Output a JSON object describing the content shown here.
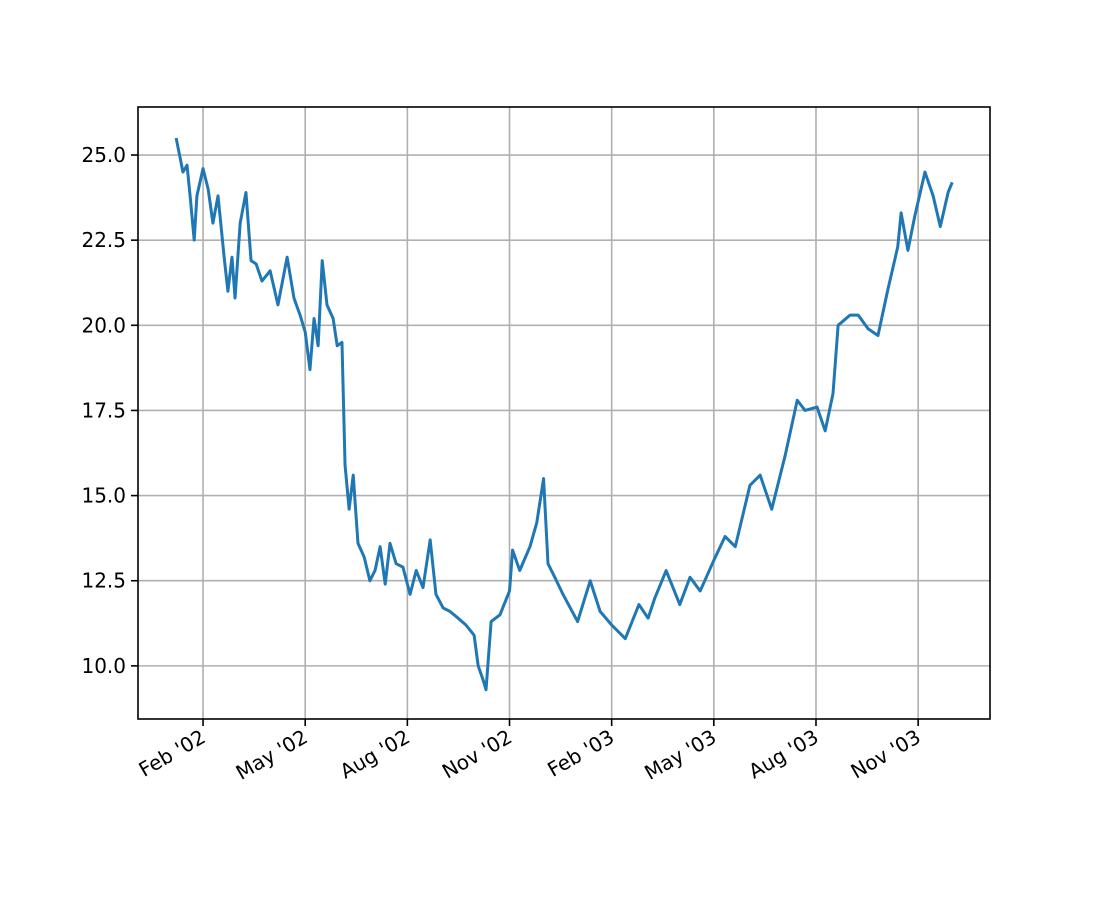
{
  "chart_data": {
    "type": "line",
    "x": [
      0.21,
      0.41,
      0.53,
      0.62,
      0.74,
      0.82,
      1.0,
      1.15,
      1.29,
      1.44,
      1.62,
      1.73,
      1.85,
      1.94,
      2.09,
      2.26,
      2.41,
      2.56,
      2.73,
      2.97,
      3.2,
      3.47,
      3.67,
      3.85,
      4.0,
      4.14,
      4.26,
      4.38,
      4.5,
      4.64,
      4.82,
      4.94,
      5.08,
      5.17,
      5.29,
      5.41,
      5.55,
      5.73,
      5.9,
      6.05,
      6.2,
      6.35,
      6.49,
      6.67,
      6.87,
      7.08,
      7.26,
      7.46,
      7.67,
      7.84,
      8.05,
      8.25,
      8.49,
      8.72,
      8.96,
      9.08,
      9.22,
      9.31,
      9.46,
      9.72,
      10.0,
      10.09,
      10.3,
      10.6,
      10.8,
      11.0,
      11.13,
      11.33,
      11.57,
      12.0,
      12.37,
      12.66,
      13.0,
      13.4,
      13.8,
      14.07,
      14.27,
      14.6,
      15.0,
      15.3,
      15.6,
      16.0,
      16.33,
      16.63,
      17.06,
      17.36,
      17.7,
      18.1,
      18.45,
      18.68,
      19.03,
      19.27,
      19.5,
      19.65,
      20.0,
      20.24,
      20.53,
      20.82,
      21.1,
      21.4,
      21.5,
      21.7,
      21.9,
      22.2,
      22.44,
      22.65,
      22.88,
      23.0
    ],
    "series": [
      {
        "color": "#1f77b4",
        "values": [
          25.5,
          24.5,
          24.7,
          23.8,
          22.5,
          23.8,
          24.6,
          24.0,
          23.0,
          23.8,
          22.0,
          21.0,
          22.0,
          20.8,
          23.0,
          23.9,
          21.9,
          21.8,
          21.3,
          21.6,
          20.6,
          22.0,
          20.8,
          20.3,
          19.8,
          18.7,
          20.2,
          19.4,
          21.9,
          20.6,
          20.2,
          19.4,
          19.5,
          15.9,
          14.6,
          15.6,
          13.6,
          13.2,
          12.5,
          12.8,
          13.5,
          12.4,
          13.6,
          13.0,
          12.9,
          12.1,
          12.8,
          12.3,
          13.7,
          12.1,
          11.7,
          11.6,
          11.4,
          11.2,
          10.9,
          10.0,
          9.6,
          9.3,
          11.3,
          11.5,
          12.2,
          13.4,
          12.8,
          13.5,
          14.2,
          15.5,
          13.0,
          12.6,
          12.1,
          11.3,
          12.5,
          11.6,
          11.2,
          10.8,
          11.8,
          11.4,
          12.0,
          12.8,
          11.8,
          12.6,
          12.2,
          13.1,
          13.8,
          13.5,
          15.3,
          15.6,
          14.6,
          16.2,
          17.8,
          17.5,
          17.6,
          16.9,
          18.0,
          20.0,
          20.3,
          20.3,
          19.9,
          19.7,
          21.0,
          22.3,
          23.3,
          22.2,
          23.2,
          24.5,
          23.8,
          22.9,
          23.9,
          24.2
        ]
      }
    ],
    "xlim": [
      -0.91,
      24.11
    ],
    "xticks": [
      {
        "value": 1,
        "label": "Feb '02"
      },
      {
        "value": 4,
        "label": "May '02"
      },
      {
        "value": 7,
        "label": "Aug '02"
      },
      {
        "value": 10,
        "label": "Nov '02"
      },
      {
        "value": 13,
        "label": "Feb '03"
      },
      {
        "value": 16,
        "label": "May '03"
      },
      {
        "value": 19,
        "label": "Aug '03"
      },
      {
        "value": 22,
        "label": "Nov '03"
      }
    ],
    "ylim": [
      8.44,
      26.41
    ],
    "yticks": [
      {
        "value": 10,
        "label": "10.0"
      },
      {
        "value": 12.5,
        "label": "12.5"
      },
      {
        "value": 15,
        "label": "15.0"
      },
      {
        "value": 17.5,
        "label": "17.5"
      },
      {
        "value": 20,
        "label": "20.0"
      },
      {
        "value": 22.5,
        "label": "22.5"
      },
      {
        "value": 25,
        "label": "25.0"
      }
    ],
    "grid": true
  }
}
